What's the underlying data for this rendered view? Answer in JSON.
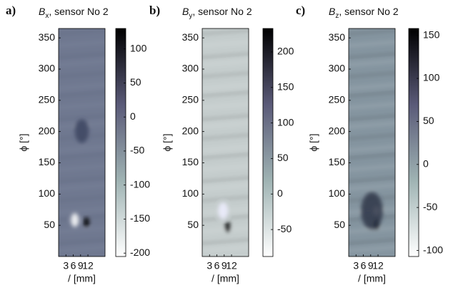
{
  "chart_data": [
    {
      "type": "heatmap",
      "panel_label": "a)",
      "title": "B",
      "title_subscript": "x",
      "title_suffix": ", sensor No 2",
      "ylabel": "ϕ [°]",
      "xlabel": "/ [mm]",
      "xlim": [
        0,
        19
      ],
      "xticks": [
        3,
        6,
        9,
        12
      ],
      "ylim": [
        0,
        365
      ],
      "yticks": [
        50,
        100,
        150,
        200,
        250,
        300,
        350
      ],
      "clim": [
        -205,
        130
      ],
      "cticks": [
        -200,
        -150,
        -100,
        -50,
        0,
        50,
        100
      ],
      "colormap": [
        "#ffffff",
        "#9fb3b3",
        "#5a5a78",
        "#000000"
      ],
      "background_color": "#6f7890"
    },
    {
      "type": "heatmap",
      "panel_label": "b)",
      "title": "B",
      "title_subscript": "y",
      "title_suffix": ", sensor No 2",
      "ylabel": "ϕ [°]",
      "xlabel": "/ [mm]",
      "xlim": [
        0,
        19
      ],
      "xticks": [
        3,
        6,
        9,
        12
      ],
      "ylim": [
        0,
        365
      ],
      "yticks": [
        50,
        100,
        150,
        200,
        250,
        300,
        350
      ],
      "clim": [
        -88,
        233
      ],
      "cticks": [
        -50,
        0,
        50,
        100,
        150,
        200
      ],
      "colormap": [
        "#ffffff",
        "#9fb3b3",
        "#5a5a78",
        "#000000"
      ],
      "background_color": "#c5cdcd"
    },
    {
      "type": "heatmap",
      "panel_label": "c)",
      "title": "B",
      "title_subscript": "z",
      "title_suffix": ", sensor No 2",
      "ylabel": "ϕ [°]",
      "xlabel": "/ [mm]",
      "xlim": [
        0,
        19
      ],
      "xticks": [
        3,
        6,
        9,
        12
      ],
      "ylim": [
        0,
        365
      ],
      "yticks": [
        50,
        100,
        150,
        200,
        250,
        300,
        350
      ],
      "clim": [
        -107,
        158
      ],
      "cticks": [
        -100,
        -50,
        0,
        50,
        100,
        150
      ],
      "colormap": [
        "#ffffff",
        "#9fb3b3",
        "#5a5a78",
        "#000000"
      ],
      "background_color": "#8595a0"
    }
  ]
}
